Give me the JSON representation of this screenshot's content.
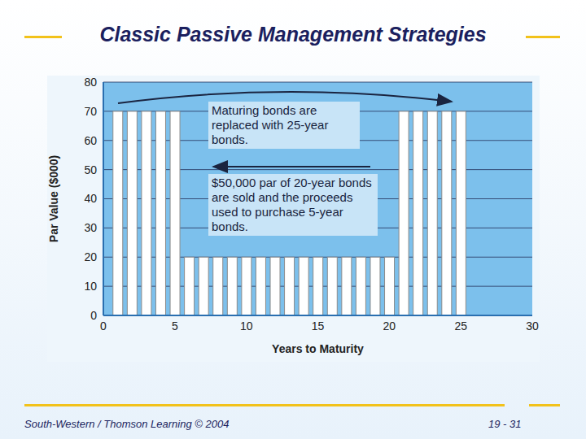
{
  "chart_data": {
    "type": "bar",
    "title": "Classic Passive Management Strategies",
    "x_label": "Years to Maturity",
    "y_label": "Par Value ($000)",
    "x": [
      1,
      2,
      3,
      4,
      5,
      6,
      7,
      8,
      9,
      10,
      11,
      12,
      13,
      14,
      15,
      16,
      17,
      18,
      19,
      20,
      21,
      22,
      23,
      24,
      25
    ],
    "values": [
      70,
      70,
      70,
      70,
      70,
      20,
      20,
      20,
      20,
      20,
      20,
      20,
      20,
      20,
      20,
      20,
      20,
      20,
      20,
      20,
      70,
      70,
      70,
      70,
      70
    ],
    "color": "#ffffff",
    "xlim": [
      0,
      30
    ],
    "xticks": [
      0,
      5,
      10,
      15,
      20,
      25,
      30
    ],
    "ylim": [
      0,
      80
    ],
    "yticks": [
      0,
      10,
      20,
      30,
      40,
      50,
      60,
      70,
      80
    ],
    "grid": true,
    "annotations": [
      "Maturing bonds are replaced with 25-year bonds.",
      "$50,000 par of 20-year bonds are sold and the proceeds used to purchase 5-year bonds."
    ]
  },
  "footer": {
    "left": "South-Western / Thomson Learning © 2004",
    "right": "19 - 31"
  }
}
